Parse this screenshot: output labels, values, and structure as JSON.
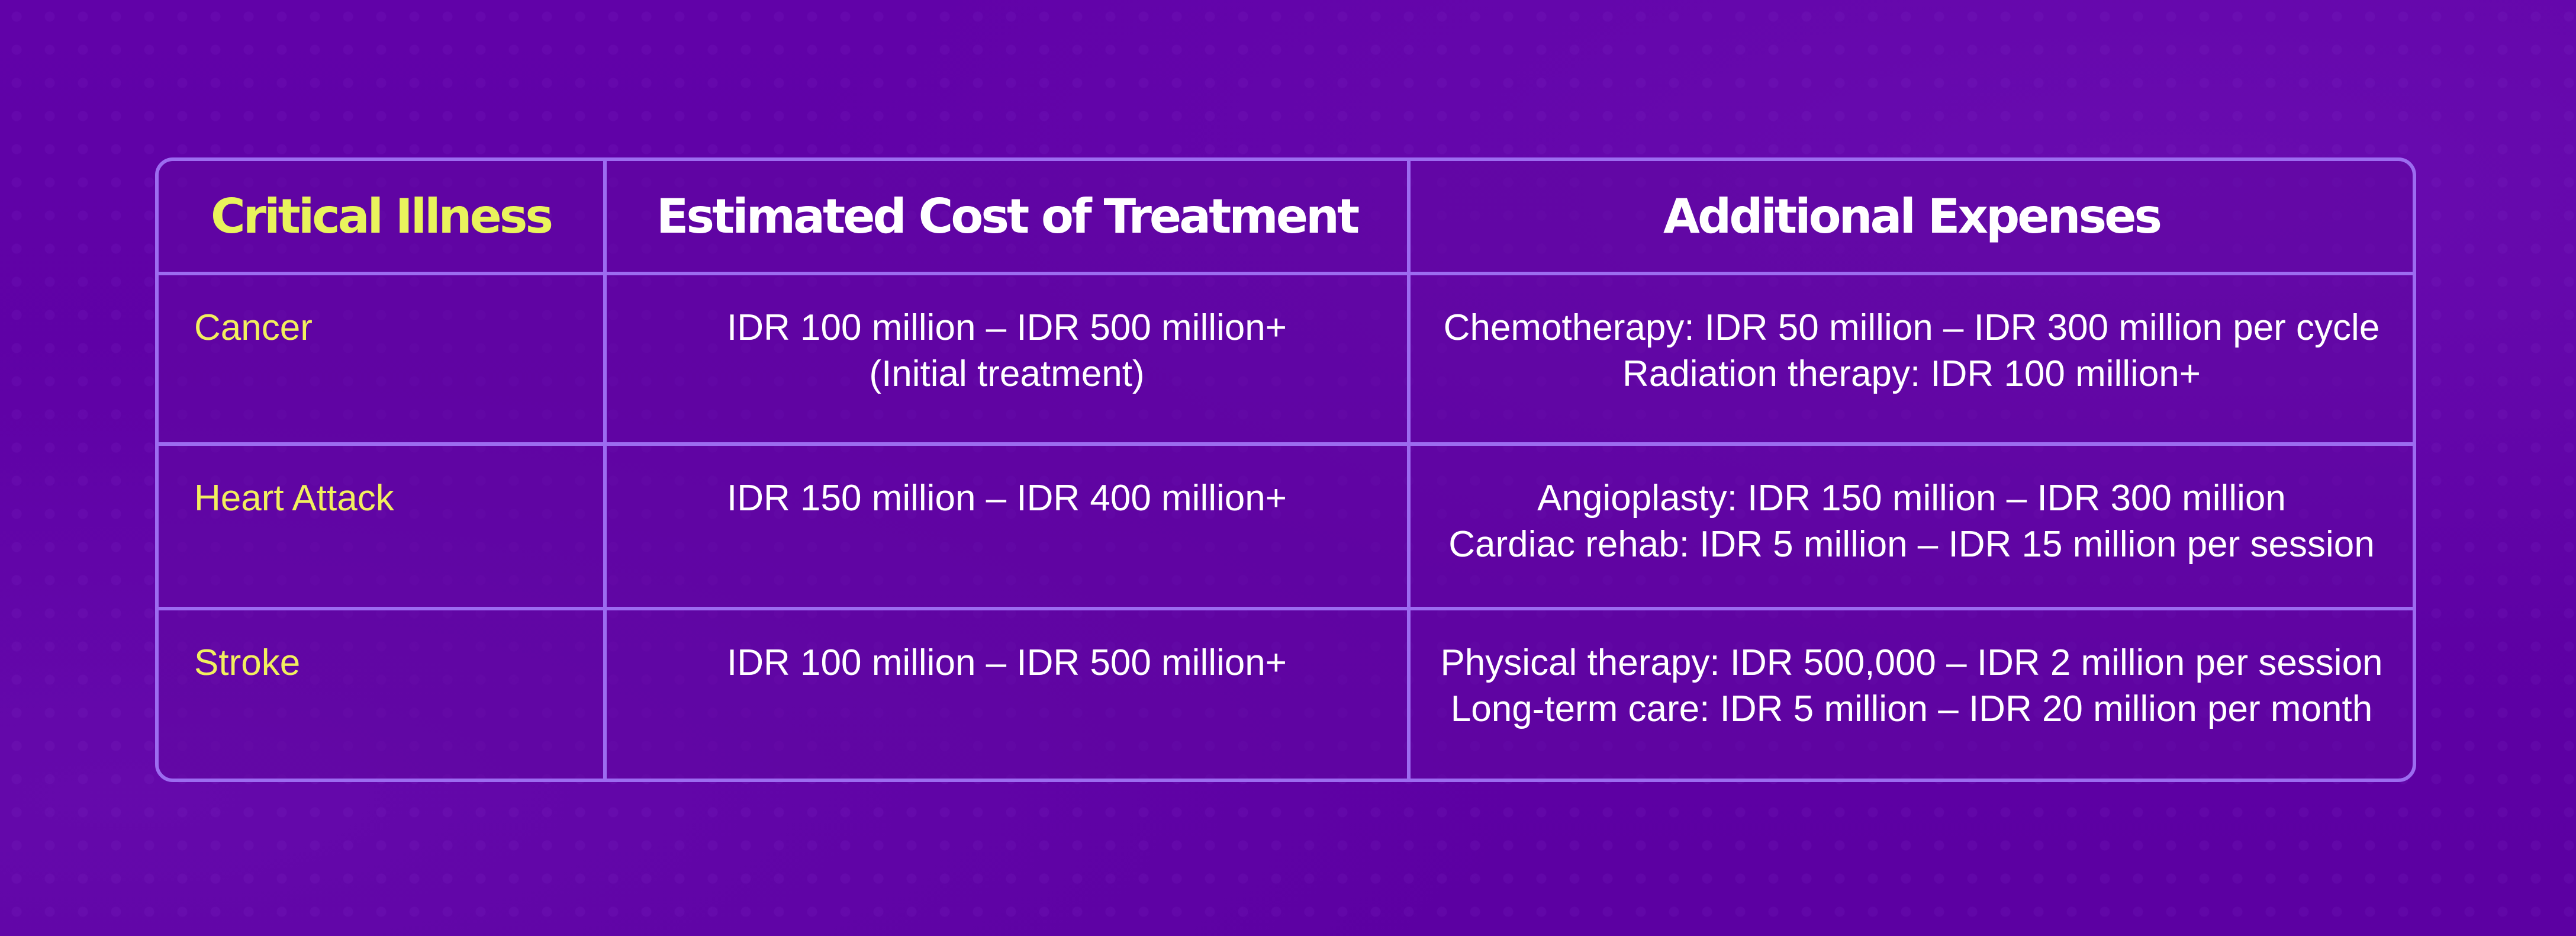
{
  "table": {
    "headers": [
      "Critical Illness",
      "Estimated Cost  of Treatment",
      "Additional Expenses"
    ],
    "rows": [
      {
        "illness": "Cancer",
        "cost": [
          "IDR 100 million – IDR 500 million+",
          "(Initial treatment)"
        ],
        "additional": [
          "Chemotherapy: IDR 50 million – IDR 300 million per cycle",
          "Radiation therapy: IDR 100 million+"
        ]
      },
      {
        "illness": "Heart Attack",
        "cost": [
          "IDR 150 million – IDR 400 million+"
        ],
        "additional": [
          "Angioplasty: IDR 150 million – IDR 300 million",
          "Cardiac rehab: IDR 5 million – IDR 15 million per session"
        ]
      },
      {
        "illness": "Stroke",
        "cost": [
          "IDR 100 million – IDR 500 million+"
        ],
        "additional": [
          "Physical therapy: IDR 500,000 – IDR 2 million per session",
          "Long-term care: IDR 5 million – IDR 20 million per month"
        ]
      }
    ]
  },
  "colors": {
    "background": "#5f01a6",
    "border": "#9c6cf0",
    "header_accent": "#e9f35c",
    "illness_text": "#f2ef5e",
    "text": "#ffffff"
  }
}
